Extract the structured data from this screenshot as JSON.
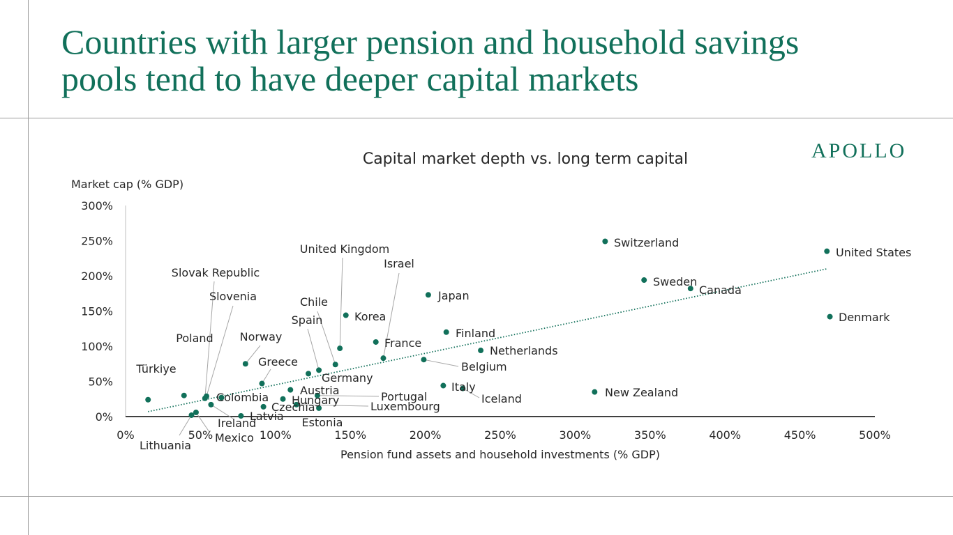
{
  "slide": {
    "title_lines": [
      "Countries with larger pension and household savings",
      "pools tend to have deeper capital markets"
    ],
    "brand": "APOLLO"
  },
  "colors": {
    "accent": "#11705a",
    "marker": "#11705a",
    "rules": "#9a9a9a",
    "text": "#262626"
  },
  "chart_data": {
    "type": "scatter",
    "title": "Capital market depth vs. long term capital",
    "xlabel": "Pension fund assets and household investments (% GDP)",
    "ylabel": "Market cap (% GDP)",
    "xlim": [
      0,
      500
    ],
    "ylim": [
      0,
      300
    ],
    "x_ticks": [
      0,
      50,
      100,
      150,
      200,
      250,
      300,
      350,
      400,
      450,
      500
    ],
    "y_ticks": [
      0,
      50,
      100,
      150,
      200,
      250,
      300
    ],
    "x_tick_labels": [
      "0%",
      "50%",
      "100%",
      "150%",
      "200%",
      "250%",
      "300%",
      "350%",
      "400%",
      "450%",
      "500%"
    ],
    "y_tick_labels": [
      "0%",
      "50%",
      "100%",
      "150%",
      "200%",
      "250%",
      "300%"
    ],
    "grid": false,
    "legend": "none",
    "trendline": {
      "style": "dotted",
      "x": [
        15,
        468
      ],
      "y": [
        7,
        210
      ]
    },
    "points": [
      {
        "label": "United States",
        "x": 468,
        "y": 235
      },
      {
        "label": "Switzerland",
        "x": 320,
        "y": 249
      },
      {
        "label": "Sweden",
        "x": 346,
        "y": 194
      },
      {
        "label": "Canada",
        "x": 377,
        "y": 182
      },
      {
        "label": "Denmark",
        "x": 470,
        "y": 142
      },
      {
        "label": "New Zealand",
        "x": 313,
        "y": 35
      },
      {
        "label": "Japan",
        "x": 202,
        "y": 173
      },
      {
        "label": "Finland",
        "x": 214,
        "y": 120
      },
      {
        "label": "Netherlands",
        "x": 237,
        "y": 94
      },
      {
        "label": "Belgium",
        "x": 199,
        "y": 81
      },
      {
        "label": "Italy",
        "x": 212,
        "y": 44
      },
      {
        "label": "Iceland",
        "x": 225,
        "y": 40
      },
      {
        "label": "United Kingdom",
        "x": 143,
        "y": 97
      },
      {
        "label": "Korea",
        "x": 147,
        "y": 144
      },
      {
        "label": "Israel",
        "x": 172,
        "y": 83
      },
      {
        "label": "France",
        "x": 167,
        "y": 106
      },
      {
        "label": "Chile",
        "x": 140,
        "y": 74
      },
      {
        "label": "Spain",
        "x": 129,
        "y": 66
      },
      {
        "label": "Germany",
        "x": 122,
        "y": 61
      },
      {
        "label": "Portugal",
        "x": 128,
        "y": 30
      },
      {
        "label": "Luxembourg",
        "x": 114,
        "y": 17
      },
      {
        "label": "Estonia",
        "x": 129,
        "y": 12
      },
      {
        "label": "Austria",
        "x": 110,
        "y": 38
      },
      {
        "label": "Hungary",
        "x": 105,
        "y": 25
      },
      {
        "label": "Czechia",
        "x": 92,
        "y": 14
      },
      {
        "label": "Greece",
        "x": 91,
        "y": 47
      },
      {
        "label": "Norway",
        "x": 80,
        "y": 75
      },
      {
        "label": "Colombia",
        "x": 64,
        "y": 27
      },
      {
        "label": "Latvia",
        "x": 77,
        "y": 1
      },
      {
        "label": "Slovenia",
        "x": 54,
        "y": 29
      },
      {
        "label": "Slovak Republic",
        "x": 53,
        "y": 26
      },
      {
        "label": "Ireland",
        "x": 57,
        "y": 17
      },
      {
        "label": "Mexico",
        "x": 47,
        "y": 6
      },
      {
        "label": "Lithuania",
        "x": 44,
        "y": 2
      },
      {
        "label": "Poland",
        "x": 39,
        "y": 30
      },
      {
        "label": "Türkiye",
        "x": 15,
        "y": 24
      }
    ]
  }
}
